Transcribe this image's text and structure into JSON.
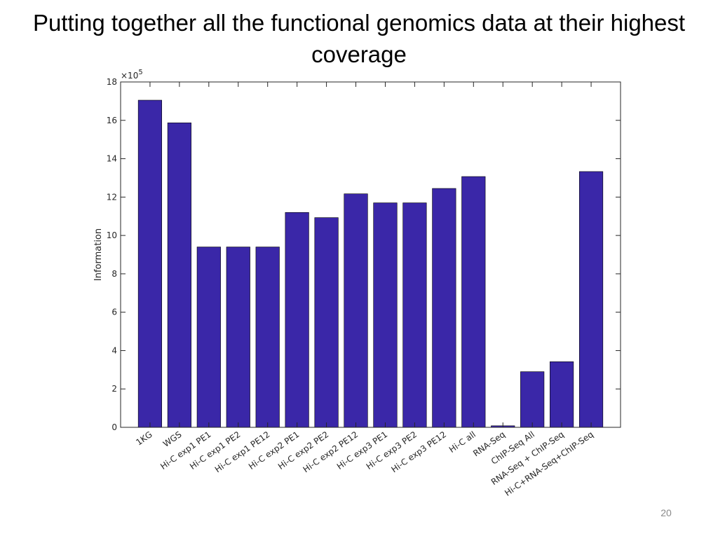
{
  "slide": {
    "title": "Putting together all the functional genomics data at their highest coverage",
    "page_number": "20"
  },
  "chart_data": {
    "type": "bar",
    "categories": [
      "1KG",
      "WGS",
      "Hi-C exp1 PE1",
      "Hi-C exp1 PE2",
      "Hi-C exp1 PE12",
      "Hi-C exp2 PE1",
      "Hi-C exp2 PE2",
      "Hi-C exp2 PE12",
      "Hi-C exp3 PE1",
      "Hi-C exp3 PE2",
      "Hi-C exp3 PE12",
      "Hi-C all",
      "RNA-Seq",
      "ChIP-Seq All",
      "RNA-Seq + ChIP-Seq",
      "Hi-C+RNA-Seq+ChIP-Seq"
    ],
    "values": [
      17.05,
      15.87,
      9.4,
      9.4,
      9.4,
      11.2,
      10.93,
      12.17,
      11.7,
      11.7,
      12.45,
      13.07,
      0.08,
      2.9,
      3.42,
      13.33
    ],
    "title": "",
    "xlabel": "",
    "ylabel": "Information",
    "multiplier_label": "×10",
    "multiplier_exponent": "5",
    "ylim": [
      0,
      18
    ],
    "yticks": [
      "0",
      "2",
      "4",
      "6",
      "8",
      "10",
      "12",
      "14",
      "16",
      "18"
    ],
    "bar_color": "#3a27a8",
    "grid": false
  }
}
